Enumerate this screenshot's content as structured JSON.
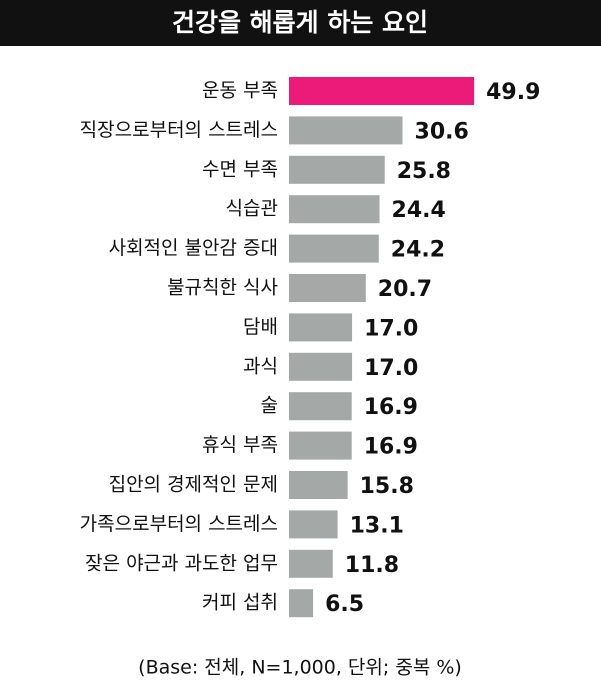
{
  "chart_data": {
    "type": "hbar",
    "title": "건강을 해롭게 하는 요인",
    "categories": [
      "운동 부족",
      "직장으로부터의 스트레스",
      "수면 부족",
      "식습관",
      "사회적인 불안감 증대",
      "불규칙한 식사",
      "담배",
      "과식",
      "술",
      "휴식 부족",
      "집안의 경제적인 문제",
      "가족으로부터의 스트레스",
      "잦은 야근과 과도한 업무",
      "커피 섭취"
    ],
    "values": [
      49.9,
      30.6,
      25.8,
      24.4,
      24.2,
      20.7,
      17.0,
      17.0,
      16.9,
      16.9,
      15.8,
      13.1,
      11.8,
      6.5
    ],
    "value_labels": [
      "49.9",
      "30.6",
      "25.8",
      "24.4",
      "24.2",
      "20.7",
      "17.0",
      "17.0",
      "16.9",
      "16.9",
      "15.8",
      "13.1",
      "11.8",
      "6.5"
    ],
    "colors": [
      "#ec1a78",
      "#a4a9a8",
      "#a4a9a8",
      "#a4a9a8",
      "#a4a9a8",
      "#a4a9a8",
      "#a4a9a8",
      "#a4a9a8",
      "#a4a9a8",
      "#a4a9a8",
      "#a4a9a8",
      "#a4a9a8",
      "#a4a9a8",
      "#a4a9a8"
    ],
    "note": "(Base: 전체, N=1,000, 단위; 중복 %)"
  }
}
